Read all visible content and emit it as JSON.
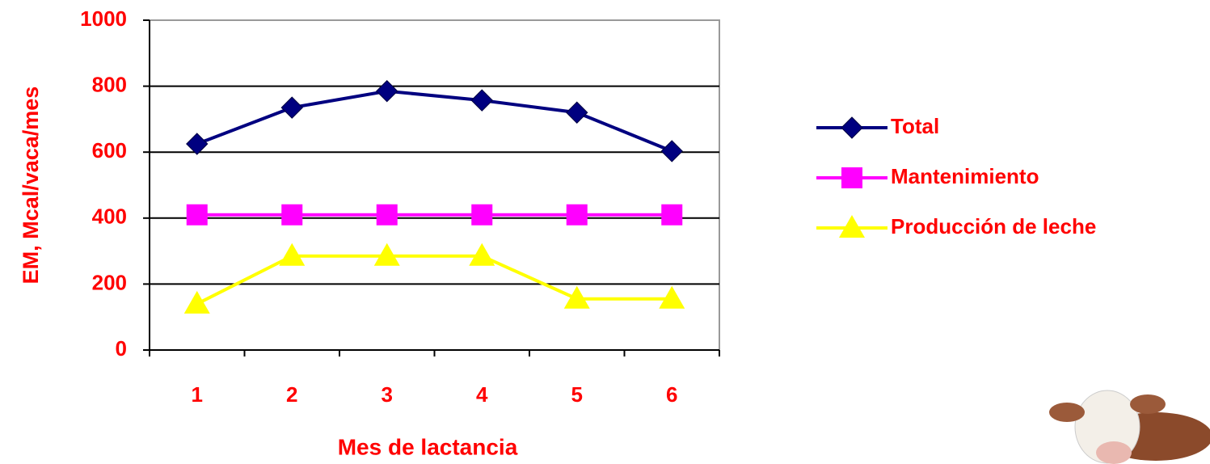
{
  "chart_data": {
    "type": "line",
    "x_label": "Mes de lactancia",
    "y_label": "EM, Mcal/vaca/mes",
    "categories": [
      "1",
      "2",
      "3",
      "4",
      "5",
      "6"
    ],
    "series": [
      {
        "name": "Total",
        "color": "#000080",
        "marker": "diamond",
        "values": [
          625,
          735,
          785,
          757,
          720,
          603
        ]
      },
      {
        "name": "Mantenimiento",
        "color": "#ff00ff",
        "marker": "square",
        "values": [
          410,
          410,
          410,
          410,
          410,
          410
        ]
      },
      {
        "name": "Producción de leche",
        "color": "#ffff00",
        "marker": "triangle",
        "values": [
          140,
          285,
          285,
          285,
          155,
          155
        ]
      }
    ],
    "ylim": [
      0,
      1000
    ],
    "yticks": [
      0,
      200,
      400,
      600,
      800,
      1000
    ],
    "grid": true,
    "legend": "right"
  }
}
